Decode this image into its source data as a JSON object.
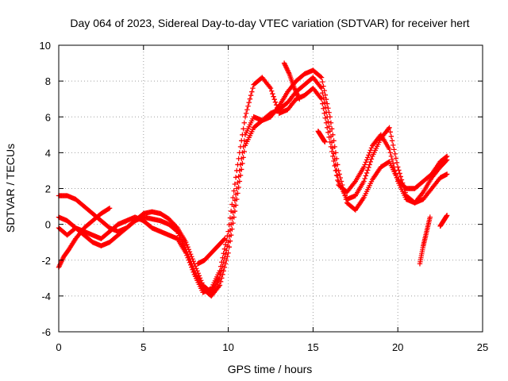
{
  "chart_data": {
    "type": "scatter",
    "title": "Day 064 of 2023, Sidereal Day-to-day VTEC variation (SDTVAR) for receiver hert",
    "xlabel": "GPS time / hours",
    "ylabel": "SDTVAR / TECUs",
    "xlim": [
      0,
      25
    ],
    "ylim": [
      -6,
      10
    ],
    "xticks": [
      "0",
      "5",
      "10",
      "15",
      "20",
      "25"
    ],
    "yticks": [
      "-6",
      "-4",
      "-2",
      "0",
      "2",
      "4",
      "6",
      "8",
      "10"
    ],
    "grid": true,
    "marker": "plus",
    "color": "#ff0000",
    "series": [
      {
        "x": [
          0,
          0.5,
          1,
          1.5,
          2,
          2.5,
          3,
          3.5,
          4,
          4.5,
          5,
          5.5,
          6,
          6.5,
          7,
          7.5,
          8,
          8.5,
          9,
          9.5,
          10,
          10.5,
          11,
          11.5,
          12,
          12.5,
          13,
          13.5,
          14,
          14.5,
          15,
          15.5,
          16,
          16.5,
          17,
          17.5,
          18,
          18.5,
          19,
          19.5,
          20,
          20.5,
          21,
          21.5,
          22,
          22.5,
          22.9
        ],
        "y": [
          1.6,
          1.6,
          1.4,
          1.0,
          0.6,
          0.2,
          -0.2,
          -0.4,
          -0.2,
          0.2,
          0.6,
          0.7,
          0.6,
          0.3,
          -0.2,
          -1.0,
          -2.2,
          -3.4,
          -3.8,
          -3.0,
          -1.0,
          2.0,
          5.0,
          6.0,
          5.8,
          6.0,
          6.6,
          7.4,
          8.0,
          8.4,
          8.6,
          8.2,
          6.0,
          3.0,
          1.2,
          0.8,
          1.5,
          2.5,
          3.2,
          3.5,
          2.5,
          2.0,
          2.0,
          2.4,
          2.8,
          3.5,
          3.8
        ]
      },
      {
        "x": [
          0,
          0.5,
          1,
          1.5,
          2,
          2.5,
          3,
          3.5,
          4,
          4.5,
          5,
          5.5,
          6,
          6.5,
          7,
          7.5,
          8,
          8.5,
          9,
          9.5,
          10,
          10.5,
          11,
          11.5,
          12,
          12.5,
          13,
          13.5,
          14,
          14.5,
          15,
          15.5,
          16,
          16.5,
          17,
          17.5,
          18,
          18.5,
          19,
          19.5,
          20,
          20.5,
          21,
          21.5,
          22,
          22.5,
          22.9
        ],
        "y": [
          0.4,
          0.2,
          -0.2,
          -0.6,
          -1.0,
          -1.2,
          -1.0,
          -0.6,
          -0.2,
          0.2,
          0.4,
          0.3,
          0.2,
          0.0,
          -0.4,
          -1.4,
          -2.6,
          -3.6,
          -4.0,
          -3.4,
          -1.6,
          1.4,
          4.4,
          5.4,
          5.8,
          6.2,
          6.4,
          6.8,
          7.4,
          7.8,
          8.2,
          7.6,
          5.2,
          2.4,
          1.4,
          1.6,
          2.4,
          3.8,
          4.8,
          5.4,
          3.2,
          1.6,
          1.2,
          1.4,
          2.0,
          2.6,
          2.8
        ]
      },
      {
        "x": [
          0,
          0.5,
          1,
          1.5,
          2,
          2.5,
          3,
          3.5,
          4,
          4.5,
          5,
          5.5,
          6,
          6.5,
          7,
          7.5,
          8,
          8.5,
          9,
          9.5,
          10,
          10.5,
          11,
          11.5,
          12,
          12.5,
          13,
          13.5,
          14,
          14.5,
          15,
          15.5,
          16,
          16.5,
          17,
          17.5,
          18,
          18.5,
          19,
          19.5,
          20,
          20.5,
          21,
          21.5,
          22,
          22.5,
          22.9
        ],
        "y": [
          -0.2,
          -0.6,
          -0.2,
          -0.4,
          -0.6,
          -0.8,
          -0.4,
          0.0,
          0.2,
          0.4,
          0.2,
          -0.2,
          -0.4,
          -0.6,
          -0.8,
          -1.6,
          -2.8,
          -3.8,
          -3.6,
          -2.6,
          -0.4,
          3.0,
          6.0,
          7.8,
          8.2,
          7.6,
          6.2,
          6.4,
          7.0,
          7.2,
          7.6,
          7.0,
          4.6,
          2.2,
          1.8,
          2.4,
          3.2,
          4.4,
          5.0,
          4.2,
          2.4,
          1.4,
          1.2,
          1.8,
          2.6,
          3.2,
          3.6
        ]
      },
      {
        "x": [
          0,
          0.3,
          0.6,
          1,
          1.5,
          2,
          2.5,
          3
        ],
        "y": [
          -2.4,
          -1.8,
          -1.4,
          -0.8,
          -0.2,
          0.2,
          0.6,
          0.9
        ]
      },
      {
        "x": [
          8.2,
          8.6,
          9,
          9.4,
          9.8
        ],
        "y": [
          -2.2,
          -2.0,
          -1.6,
          -1.2,
          -0.8
        ]
      },
      {
        "x": [
          21.3,
          21.5,
          21.7,
          21.9
        ],
        "y": [
          -2.2,
          -1.2,
          -0.4,
          0.4
        ]
      },
      {
        "x": [
          22.5,
          22.7,
          22.9
        ],
        "y": [
          -0.1,
          0.2,
          0.5
        ]
      },
      {
        "x": [
          15.3,
          15.5,
          15.7
        ],
        "y": [
          5.2,
          4.9,
          4.6
        ]
      },
      {
        "x": [
          13.3,
          13.6,
          13.9,
          14.2
        ],
        "y": [
          9.0,
          8.4,
          7.6,
          7.0
        ]
      }
    ]
  }
}
